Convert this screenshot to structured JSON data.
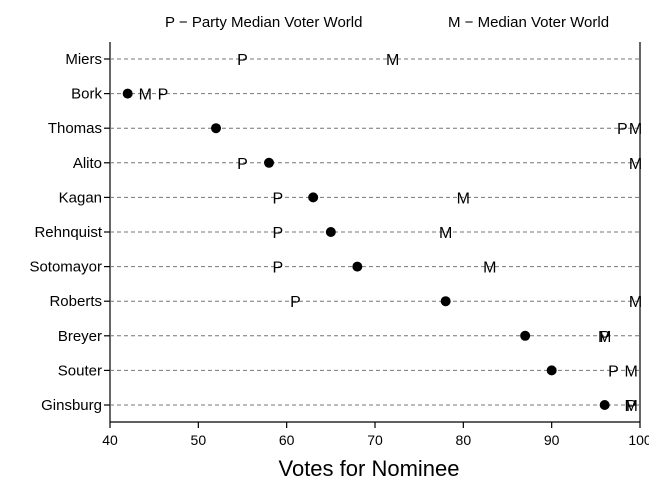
{
  "chart_data": {
    "type": "scatter",
    "title": "",
    "xlabel": "Votes for Nominee",
    "ylabel": "",
    "xlim": [
      40,
      100
    ],
    "xticks": [
      40,
      50,
      60,
      70,
      80,
      90,
      100
    ],
    "grid": "dashed horizontal lines",
    "legend_entries": [
      {
        "symbol": "P",
        "text": "P − Party Median Voter World"
      },
      {
        "symbol": "M",
        "text": "M − Median Voter World"
      }
    ],
    "categories": [
      "Miers",
      "Bork",
      "Thomas",
      "Alito",
      "Kagan",
      "Rehnquist",
      "Sotomayor",
      "Roberts",
      "Breyer",
      "Souter",
      "Ginsburg"
    ],
    "series": [
      {
        "symbol": "dot",
        "values": [
          null,
          42,
          52,
          58,
          63,
          65,
          68,
          78,
          87,
          90,
          96
        ]
      },
      {
        "symbol": "P",
        "values": [
          55,
          46,
          98,
          55,
          59,
          59,
          59,
          61,
          96,
          97,
          99
        ]
      },
      {
        "symbol": "M",
        "values": [
          72,
          44,
          99.5,
          99.5,
          80,
          78,
          83,
          99.5,
          96,
          99,
          99
        ]
      }
    ]
  }
}
